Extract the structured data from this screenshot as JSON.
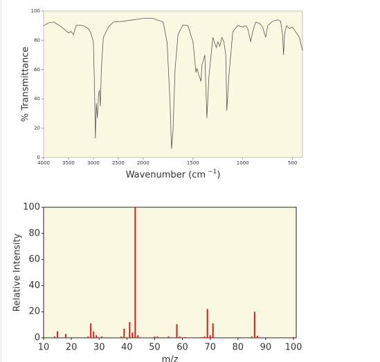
{
  "chart_data": [
    {
      "type": "line",
      "ylabel": "% Transmittance",
      "xlabel": {
        "text": "Wavenumber (cm",
        "superscript": "−1",
        "suffix": ")"
      },
      "x_break": 2000,
      "xlim": [
        4000,
        400
      ],
      "xticks": [
        4000,
        3500,
        3000,
        2500,
        2000,
        1500,
        1000,
        500
      ],
      "ylim": [
        0,
        100
      ],
      "yticks": [
        0,
        20,
        40,
        60,
        80,
        100
      ],
      "color": "#555555",
      "background": "#fbf8e1",
      "x": [
        4000,
        3900,
        3800,
        3700,
        3600,
        3500,
        3450,
        3400,
        3350,
        3300,
        3200,
        3100,
        3050,
        3000,
        2980,
        2960,
        2940,
        2920,
        2900,
        2880,
        2860,
        2840,
        2800,
        2700,
        2600,
        2400,
        2200,
        2000,
        1900,
        1800,
        1760,
        1730,
        1715,
        1700,
        1680,
        1650,
        1600,
        1550,
        1500,
        1470,
        1460,
        1440,
        1420,
        1410,
        1380,
        1365,
        1360,
        1340,
        1300,
        1280,
        1265,
        1250,
        1230,
        1210,
        1190,
        1170,
        1160,
        1140,
        1100,
        1050,
        1000,
        970,
        950,
        920,
        900,
        870,
        830,
        800,
        770,
        750,
        700,
        650,
        620,
        600,
        590,
        580,
        560,
        530,
        500,
        470,
        430,
        400
      ],
      "values": [
        90,
        92,
        92.5,
        90.5,
        88,
        85,
        86,
        84,
        90,
        90.5,
        90,
        88,
        85,
        79,
        51,
        13,
        37,
        27,
        42,
        46,
        35,
        60,
        82,
        89,
        92.5,
        93,
        94,
        95,
        95,
        92.5,
        79,
        37,
        6,
        18,
        60,
        84,
        90.5,
        90,
        79,
        58,
        61,
        56,
        52,
        63,
        70,
        37,
        27,
        55,
        82,
        78,
        75,
        79,
        76,
        82,
        79,
        70,
        32,
        55,
        86,
        90,
        89,
        90,
        88,
        79,
        86,
        92.5,
        91.5,
        89,
        82,
        90,
        93,
        94,
        93,
        84,
        70,
        84,
        90,
        88,
        89,
        86,
        82,
        73
      ]
    },
    {
      "type": "bar",
      "ylabel": "Relative Intensity",
      "xlabel": "m/z",
      "xlim": [
        10,
        101
      ],
      "xticks": [
        10,
        20,
        30,
        40,
        50,
        60,
        70,
        80,
        90,
        100
      ],
      "ylim": [
        0,
        100
      ],
      "yticks": [
        0,
        20,
        40,
        60,
        80,
        100
      ],
      "color": "#d7191c",
      "background": "#fbf8e1",
      "x": [
        14,
        15,
        18,
        26,
        27,
        28,
        29,
        31,
        38,
        39,
        41,
        42,
        43,
        44,
        50,
        51,
        55,
        58,
        59,
        61,
        67,
        68,
        69,
        70,
        71,
        85,
        86,
        87,
        100
      ],
      "values": [
        1,
        5,
        3,
        1,
        11,
        5,
        2,
        1,
        1,
        7,
        12,
        4,
        100,
        2,
        1,
        1,
        1,
        10.5,
        1,
        0.5,
        0.5,
        1,
        22,
        2,
        11,
        1,
        20,
        1.5,
        0.5
      ]
    }
  ]
}
